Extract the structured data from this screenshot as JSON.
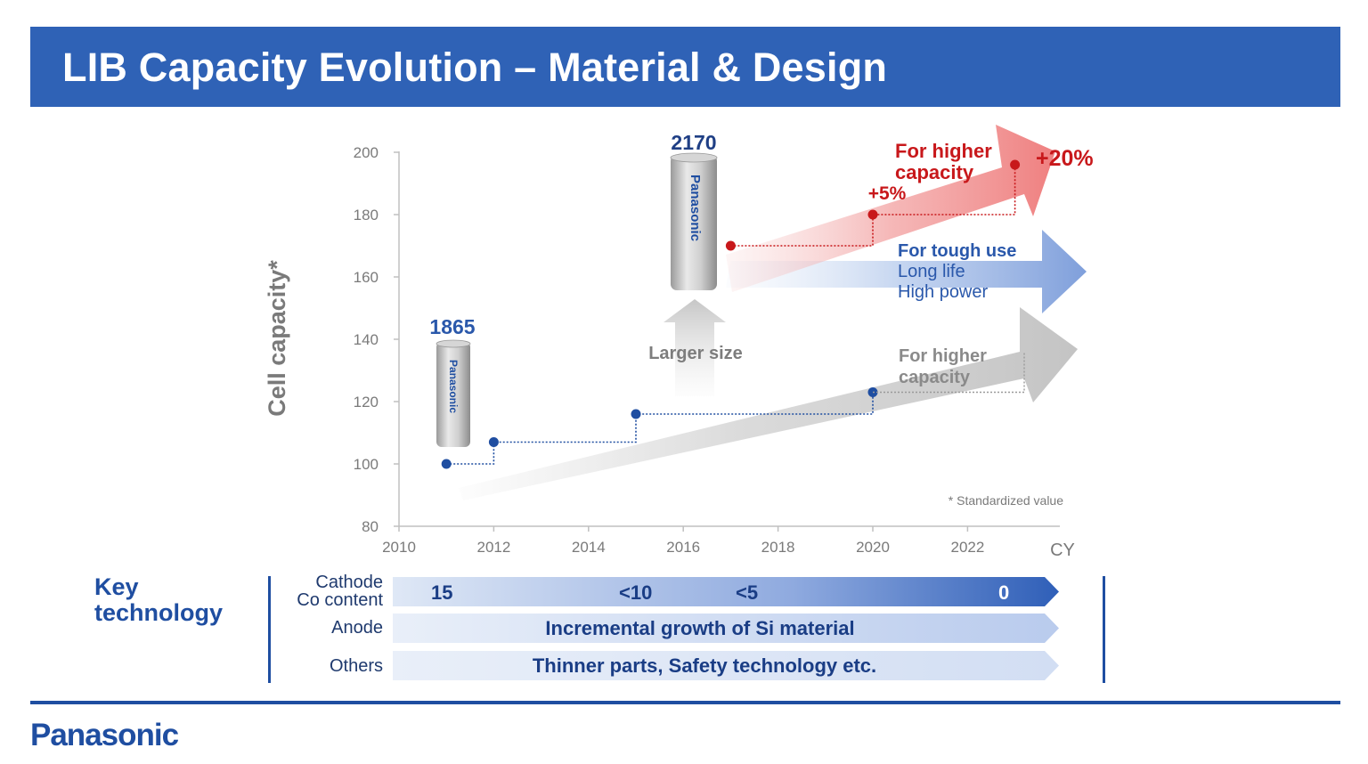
{
  "header": {
    "title": "LIB Capacity Evolution – Material & Design"
  },
  "chart_data": {
    "type": "line",
    "title": "",
    "ylabel": "Cell capacity*",
    "xlabel": "CY",
    "xlim": [
      2010,
      2024
    ],
    "ylim": [
      80,
      200
    ],
    "xticks": [
      2010,
      2012,
      2014,
      2016,
      2018,
      2020,
      2022
    ],
    "yticks": [
      80,
      100,
      120,
      140,
      160,
      180,
      200
    ],
    "series": [
      {
        "name": "",
        "color": "#1f4ea1",
        "x": [
          2011,
          2012,
          2015,
          2020
        ],
        "y": [
          100,
          107,
          116,
          123
        ]
      },
      {
        "name": "",
        "color": "#c8181b",
        "x": [
          2017,
          2020,
          2023
        ],
        "y": [
          170,
          180,
          196
        ]
      }
    ],
    "cells": [
      {
        "label": "1865"
      },
      {
        "label": "2170"
      }
    ],
    "cell_brand": "Panasonic",
    "annotations": {
      "larger_size": "Larger size",
      "gray_arrow": "For higher capacity",
      "red_arrow": "For higher capacity",
      "plus5": "+5%",
      "plus20": "+20%",
      "blue_arrow_title": "For tough use",
      "blue_arrow_line1": "Long life",
      "blue_arrow_line2": "High power",
      "footnote": "* Standardized value"
    },
    "colors": {
      "red": "#c8181b",
      "blue": "#1f4ea1",
      "gray": "#8a8a8a"
    }
  },
  "key_technology": {
    "title": "Key technology",
    "rows": [
      {
        "label": "Cathode Co content",
        "values": [
          "15",
          "<10",
          "<5",
          "0"
        ]
      },
      {
        "label": "Anode",
        "text": "Incremental growth of Si material"
      },
      {
        "label": "Others",
        "text": "Thinner parts, Safety technology etc."
      }
    ]
  },
  "footer": {
    "brand": "Panasonic"
  }
}
